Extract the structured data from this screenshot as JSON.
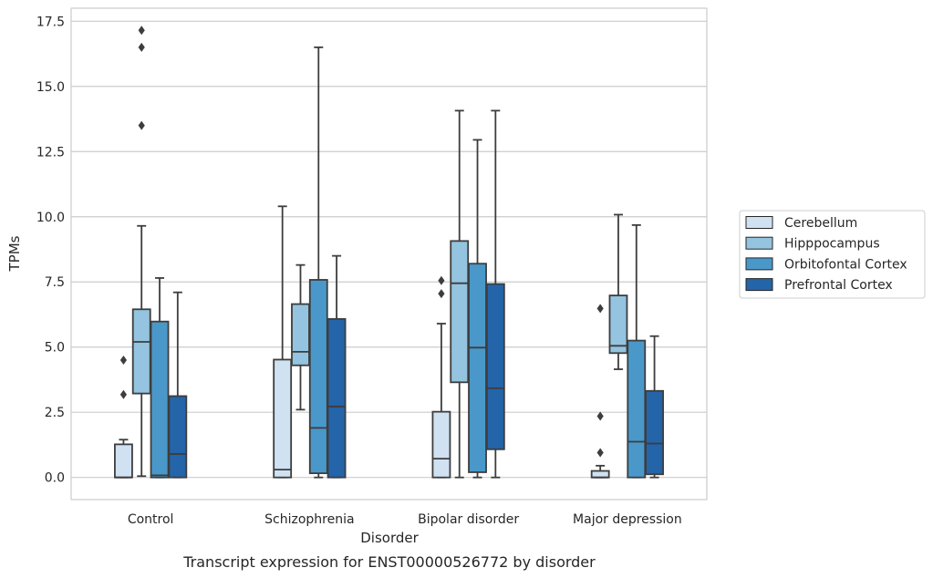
{
  "chart_data": {
    "type": "box",
    "caption": "Transcript expression for ENST00000526772 by disorder",
    "xlabel": "Disorder",
    "ylabel": "TPMs",
    "ylim": [
      -0.85,
      18.0
    ],
    "yticks": [
      0.0,
      2.5,
      5.0,
      7.5,
      10.0,
      12.5,
      15.0,
      17.5
    ],
    "ytick_labels": [
      "0.0",
      "2.5",
      "5.0",
      "7.5",
      "10.0",
      "12.5",
      "15.0",
      "17.5"
    ],
    "grid": "horizontal",
    "legend_position": "right",
    "categories": [
      "Control",
      "Schizophrenia",
      "Bipolar disorder",
      "Major depression"
    ],
    "series": [
      {
        "name": "Cerebellum",
        "color": "#d0e1f2",
        "boxes": [
          {
            "whislo": 0.0,
            "q1": 0.0,
            "med": 0.0,
            "q3": 1.27,
            "whishi": 1.45,
            "fliers": [
              3.18,
              4.5
            ]
          },
          {
            "whislo": 0.0,
            "q1": 0.0,
            "med": 0.3,
            "q3": 4.52,
            "whishi": 10.4,
            "fliers": []
          },
          {
            "whislo": 0.0,
            "q1": 0.0,
            "med": 0.72,
            "q3": 2.52,
            "whishi": 5.9,
            "fliers": [
              7.05,
              7.55
            ]
          },
          {
            "whislo": 0.0,
            "q1": 0.0,
            "med": 0.0,
            "q3": 0.25,
            "whishi": 0.45,
            "fliers": [
              0.95,
              2.35,
              6.48
            ]
          }
        ]
      },
      {
        "name": "Hipppocampus",
        "color": "#94c4df",
        "boxes": [
          {
            "whislo": 0.05,
            "q1": 3.22,
            "med": 5.2,
            "q3": 6.45,
            "whishi": 9.65,
            "fliers": [
              13.5,
              16.5,
              17.15
            ]
          },
          {
            "whislo": 2.6,
            "q1": 4.3,
            "med": 4.82,
            "q3": 6.65,
            "whishi": 8.15,
            "fliers": []
          },
          {
            "whislo": 0.0,
            "q1": 3.65,
            "med": 7.45,
            "q3": 9.07,
            "whishi": 14.07,
            "fliers": []
          },
          {
            "whislo": 4.15,
            "q1": 4.77,
            "med": 5.05,
            "q3": 6.98,
            "whishi": 10.08,
            "fliers": []
          }
        ]
      },
      {
        "name": "Orbitofontal Cortex",
        "color": "#4a98c9",
        "boxes": [
          {
            "whislo": 0.0,
            "q1": 0.0,
            "med": 0.08,
            "q3": 5.98,
            "whishi": 7.65,
            "fliers": []
          },
          {
            "whislo": 0.0,
            "q1": 0.16,
            "med": 1.9,
            "q3": 7.58,
            "whishi": 16.5,
            "fliers": []
          },
          {
            "whislo": 0.0,
            "q1": 0.2,
            "med": 4.98,
            "q3": 8.2,
            "whishi": 12.95,
            "fliers": []
          },
          {
            "whislo": 0.0,
            "q1": 0.0,
            "med": 1.37,
            "q3": 5.25,
            "whishi": 9.68,
            "fliers": []
          }
        ]
      },
      {
        "name": "Prefrontal Cortex",
        "color": "#2464a9",
        "boxes": [
          {
            "whislo": 0.0,
            "q1": 0.0,
            "med": 0.9,
            "q3": 3.12,
            "whishi": 7.1,
            "fliers": []
          },
          {
            "whislo": 0.0,
            "q1": 0.0,
            "med": 2.72,
            "q3": 6.08,
            "whishi": 8.5,
            "fliers": []
          },
          {
            "whislo": 0.0,
            "q1": 1.08,
            "med": 3.42,
            "q3": 7.42,
            "whishi": 14.07,
            "fliers": []
          },
          {
            "whislo": 0.0,
            "q1": 0.12,
            "med": 1.3,
            "q3": 3.32,
            "whishi": 5.42,
            "fliers": []
          }
        ]
      }
    ]
  }
}
